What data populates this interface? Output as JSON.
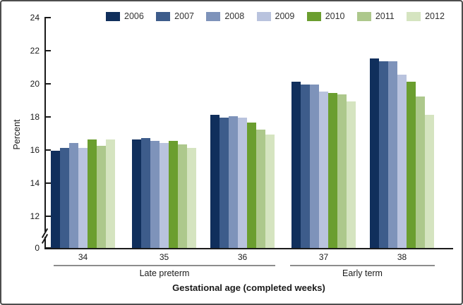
{
  "figure": {
    "y_axis_title": "Percent",
    "x_axis_title": "Gestational age (completed weeks)",
    "group_late_label": "Late preterm",
    "group_early_label": "Early term"
  },
  "chart_data": {
    "type": "bar",
    "title": "",
    "xlabel": "Gestational age (completed weeks)",
    "ylabel": "Percent",
    "categories": [
      "34",
      "35",
      "36",
      "37",
      "38"
    ],
    "category_groups": [
      {
        "label": "Late preterm",
        "categories": [
          "34",
          "35",
          "36"
        ]
      },
      {
        "label": "Early term",
        "categories": [
          "37",
          "38"
        ]
      }
    ],
    "yticks": [
      "24",
      "22",
      "20",
      "18",
      "16",
      "14",
      "12",
      "0"
    ],
    "ylim": [
      0,
      24
    ],
    "ylim_displayed_segment": [
      12,
      24
    ],
    "axis_break_between": [
      0,
      12
    ],
    "grid": "off",
    "legend_position": "top",
    "series": [
      {
        "name": "2006",
        "color": "#102f5c",
        "values": [
          15.9,
          16.6,
          18.1,
          20.1,
          21.5
        ]
      },
      {
        "name": "2007",
        "color": "#3d5c8b",
        "values": [
          16.1,
          16.7,
          17.9,
          19.9,
          21.3
        ]
      },
      {
        "name": "2008",
        "color": "#7e93ba",
        "values": [
          16.4,
          16.5,
          18.0,
          19.9,
          21.3
        ]
      },
      {
        "name": "2009",
        "color": "#b9c3de",
        "values": [
          16.1,
          16.4,
          17.9,
          19.5,
          20.5
        ]
      },
      {
        "name": "2010",
        "color": "#6b9e2f",
        "values": [
          16.6,
          16.5,
          17.6,
          19.4,
          20.1
        ]
      },
      {
        "name": "2011",
        "color": "#adc88c",
        "values": [
          16.2,
          16.3,
          17.2,
          19.3,
          19.2
        ]
      },
      {
        "name": "2012",
        "color": "#d5e4c0",
        "values": [
          16.6,
          16.1,
          16.9,
          18.9,
          18.1
        ]
      }
    ]
  }
}
